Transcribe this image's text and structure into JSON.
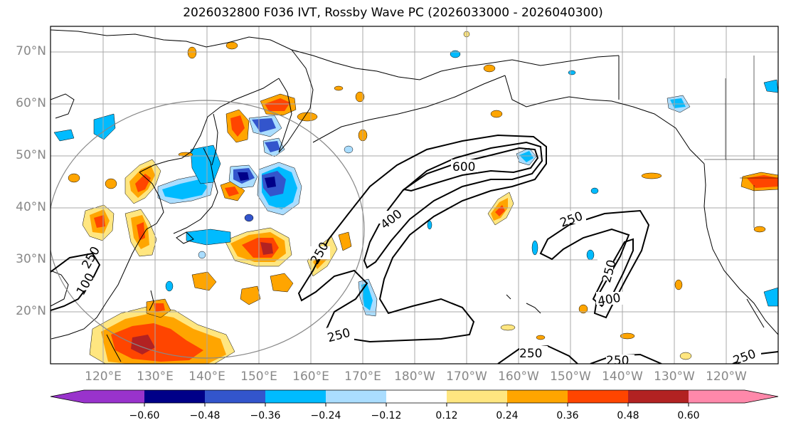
{
  "title": "2026032800 F036 IVT, Rossby Wave PC (2026033000 - 2026040300)",
  "axes": {
    "lat_labels": [
      "70°N",
      "60°N",
      "50°N",
      "40°N",
      "30°N",
      "20°N"
    ],
    "lat_values": [
      70,
      60,
      50,
      40,
      30,
      20
    ],
    "lon_labels": [
      "120°E",
      "130°E",
      "140°E",
      "150°E",
      "160°E",
      "170°E",
      "180°W",
      "170°W",
      "160°W",
      "150°W",
      "140°W",
      "130°W",
      "120°W"
    ],
    "lon_values": [
      120,
      130,
      140,
      150,
      160,
      170,
      180,
      190,
      200,
      210,
      220,
      230,
      240
    ],
    "lat_range": [
      10,
      75
    ],
    "lon_range": [
      113,
      247
    ]
  },
  "contours": {
    "labels": [
      "600",
      "400",
      "250",
      "250",
      "100",
      "250",
      "250",
      "250",
      "400",
      "250",
      "250",
      "250"
    ]
  },
  "colorbar": {
    "ticks": [
      "−0.60",
      "−0.48",
      "−0.36",
      "−0.24",
      "−0.12",
      "0.12",
      "0.24",
      "0.36",
      "0.48",
      "0.60"
    ],
    "colors": [
      "#9933cc",
      "#000088",
      "#3355cc",
      "#00bbff",
      "#aaddff",
      "#ffffff",
      "#ffe680",
      "#ffa500",
      "#ff4500",
      "#b22222",
      "#ff88aa"
    ]
  },
  "colors": {
    "negative_strong": "#3355cc",
    "negative_mid": "#00bbff",
    "negative_weak": "#aaddff",
    "positive_weak": "#ffe680",
    "positive_mid": "#ffa500",
    "positive_strong": "#ff4500",
    "positive_max": "#b22222"
  }
}
